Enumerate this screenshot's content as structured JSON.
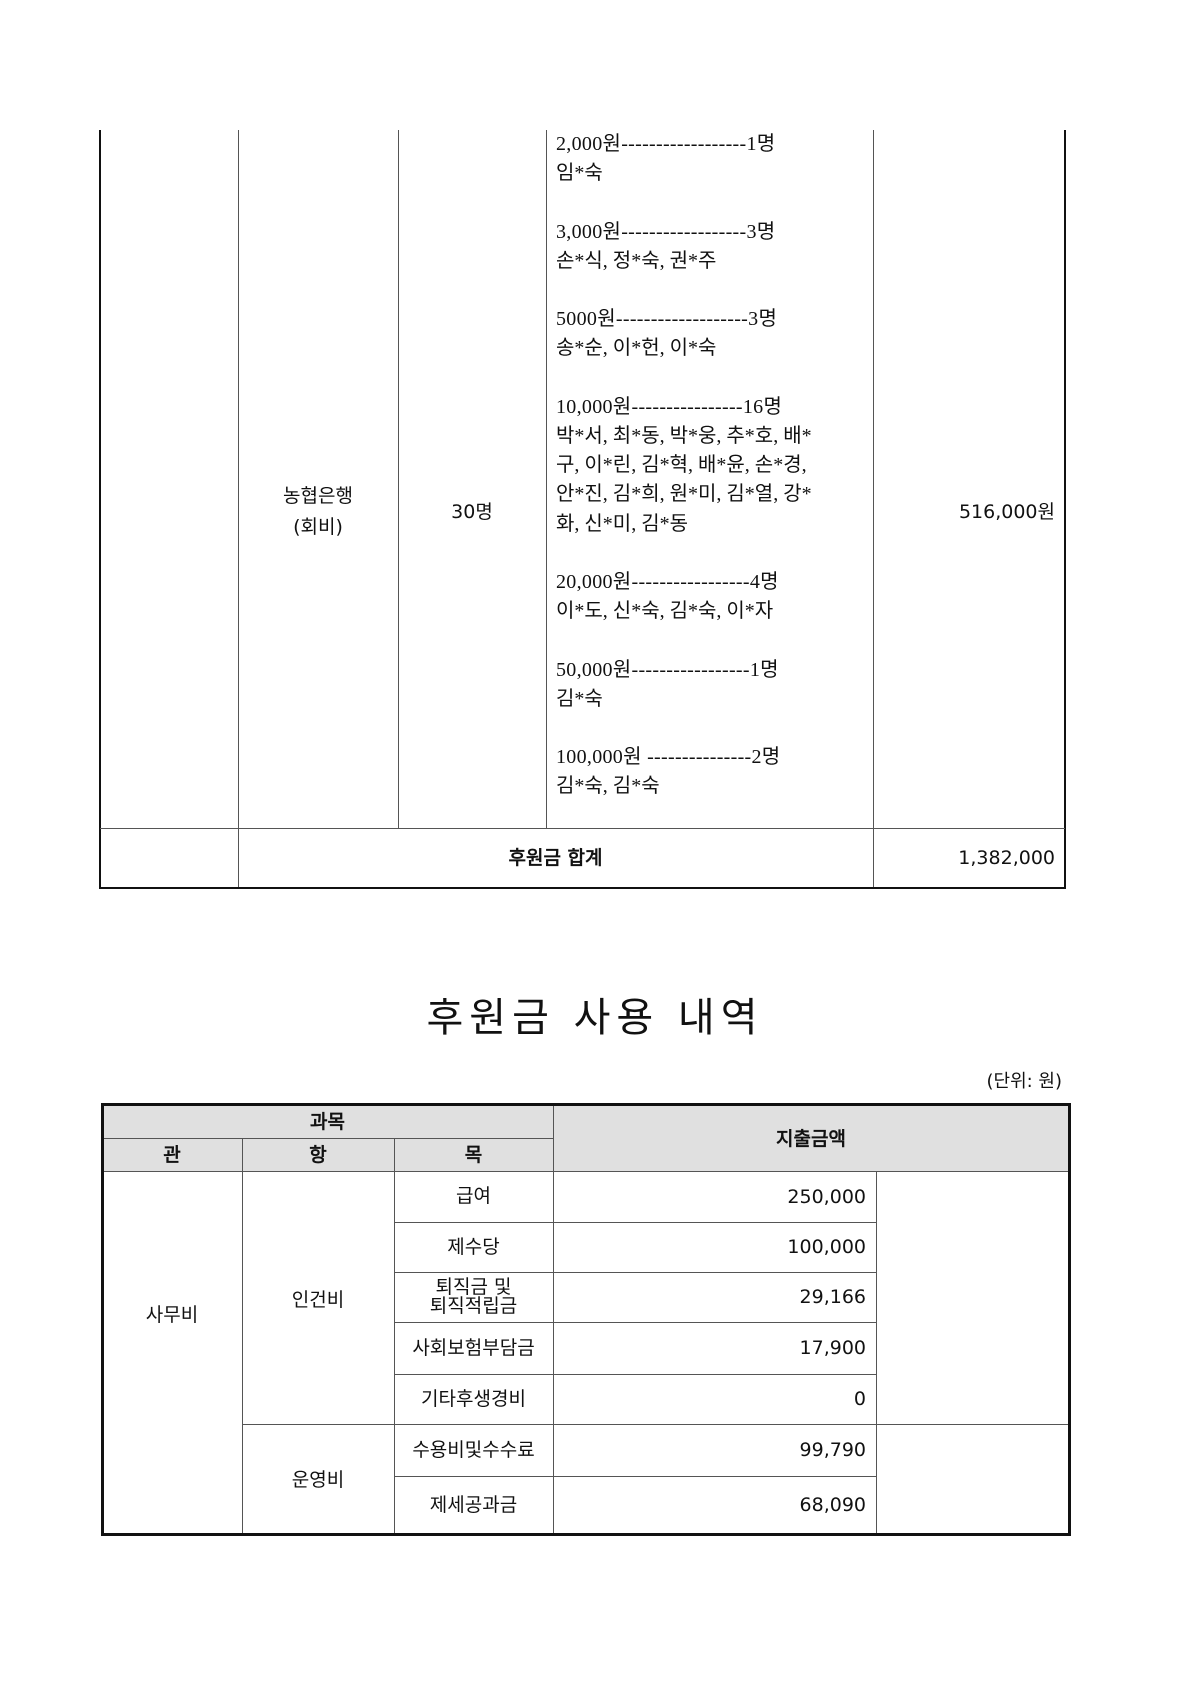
{
  "donation_table": {
    "bank_label_line1": "농협은행",
    "bank_label_line2": "(회비)",
    "count": "30명",
    "groups": [
      {
        "amount_line": "2,000원------------------1명",
        "names": [
          "임*숙"
        ]
      },
      {
        "amount_line": "3,000원------------------3명",
        "names": [
          "손*식, 정*숙, 권*주"
        ]
      },
      {
        "amount_line": "5000원-------------------3명",
        "names": [
          "송*순, 이*헌, 이*숙"
        ]
      },
      {
        "amount_line": "10,000원----------------16명",
        "names": [
          "박*서, 최*동, 박*웅, 추*호, 배*",
          "구, 이*린, 김*혁, 배*윤, 손*경,",
          "안*진, 김*희, 원*미, 김*열, 강*",
          "화, 신*미, 김*동"
        ]
      },
      {
        "amount_line": "20,000원-----------------4명",
        "names": [
          "이*도, 신*숙, 김*숙, 이*자"
        ]
      },
      {
        "amount_line": "50,000원-----------------1명",
        "names": [
          "김*숙"
        ]
      },
      {
        "amount_line": "100,000원 ---------------2명",
        "names": [
          "김*숙, 김*숙"
        ]
      }
    ],
    "subtotal": "516,000원",
    "total_label": "후원금 합계",
    "total_value": "1,382,000"
  },
  "usage": {
    "title": "후원금 사용 내역",
    "unit": "(단위: 원)",
    "header": {
      "subject": "과목",
      "gwan": "관",
      "hang": "항",
      "mok": "목",
      "amount": "지출금액"
    },
    "gwan": "사무비",
    "hang": [
      "인건비",
      "운영비"
    ],
    "rows": [
      {
        "mok": "급여",
        "amount": "250,000"
      },
      {
        "mok": "제수당",
        "amount": "100,000"
      },
      {
        "mok": "퇴직금 및\n퇴직적립금",
        "amount": "29,166"
      },
      {
        "mok": "사회보험부담금",
        "amount": "17,900"
      },
      {
        "mok": "기타후생경비",
        "amount": "0"
      },
      {
        "mok": "수용비및수수료",
        "amount": "99,790"
      },
      {
        "mok": "제세공과금",
        "amount": "68,090"
      }
    ]
  }
}
